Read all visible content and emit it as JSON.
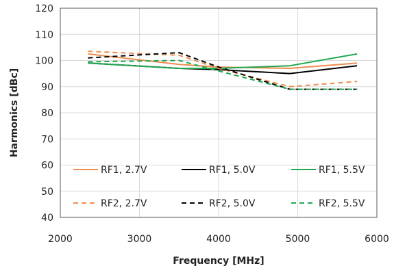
{
  "chart_data": {
    "type": "line",
    "xlabel": "Frequency [MHz]",
    "ylabel": "Harmonics [dBc]",
    "xlim": [
      2000,
      6000
    ],
    "ylim": [
      40,
      120
    ],
    "xticks": [
      2000,
      3000,
      4000,
      5000,
      6000
    ],
    "yticks": [
      40,
      50,
      60,
      70,
      80,
      90,
      100,
      110,
      120
    ],
    "grid": true,
    "legend_position": "inside-bottom",
    "series": [
      {
        "name": "RF1, 2.7V",
        "color": "#ED8C4E",
        "dash": "solid",
        "x": [
          2350,
          3500,
          4000,
          4900,
          5750
        ],
        "y": [
          102.5,
          98.5,
          97.5,
          97.0,
          99.0
        ]
      },
      {
        "name": "RF1, 5.0V",
        "color": "#000000",
        "dash": "solid",
        "x": [
          2350,
          3500,
          4000,
          4900,
          5750
        ],
        "y": [
          99.0,
          97.0,
          96.5,
          95.0,
          98.0
        ]
      },
      {
        "name": "RF1, 5.5V",
        "color": "#1FA84F",
        "dash": "solid",
        "x": [
          2350,
          3500,
          4000,
          4900,
          5750
        ],
        "y": [
          99.0,
          97.0,
          97.0,
          98.0,
          102.5
        ]
      },
      {
        "name": "RF2, 2.7V",
        "color": "#ED8C4E",
        "dash": "dashed",
        "x": [
          2350,
          3500,
          4000,
          4900,
          5750
        ],
        "y": [
          103.5,
          102.0,
          97.0,
          90.0,
          92.0
        ]
      },
      {
        "name": "RF2, 5.0V",
        "color": "#000000",
        "dash": "dashed",
        "x": [
          2350,
          3500,
          4000,
          4900,
          5750
        ],
        "y": [
          101.0,
          103.0,
          97.5,
          89.0,
          89.0
        ]
      },
      {
        "name": "RF2, 5.5V",
        "color": "#1FA84F",
        "dash": "dashed",
        "x": [
          2350,
          3500,
          4000,
          4900,
          5750
        ],
        "y": [
          99.5,
          100.0,
          96.0,
          89.0,
          89.0
        ]
      }
    ]
  }
}
